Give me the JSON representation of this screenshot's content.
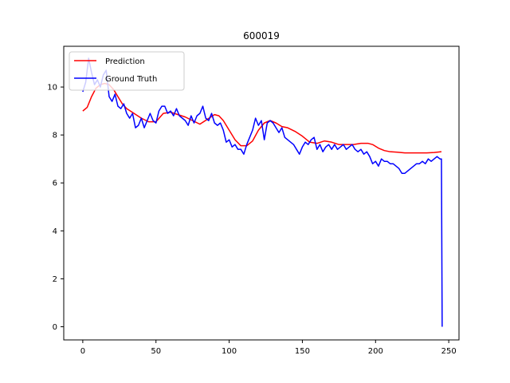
{
  "chart_data": {
    "type": "line",
    "title": "600019",
    "xlabel": "",
    "ylabel": "",
    "xlim": [
      -13,
      257
    ],
    "ylim": [
      -0.55,
      11.7
    ],
    "xticks": [
      0,
      50,
      100,
      150,
      200,
      250
    ],
    "yticks": [
      0,
      2,
      4,
      6,
      8,
      10
    ],
    "grid": false,
    "legend_position": "top-left",
    "series": [
      {
        "name": "Prediction",
        "color": "#ff0000",
        "x": [
          0,
          3,
          6,
          9,
          12,
          15,
          18,
          21,
          24,
          27,
          30,
          35,
          40,
          45,
          50,
          55,
          60,
          65,
          70,
          75,
          80,
          85,
          90,
          93,
          96,
          100,
          104,
          108,
          112,
          116,
          120,
          124,
          128,
          132,
          136,
          140,
          145,
          150,
          155,
          160,
          165,
          170,
          175,
          180,
          185,
          190,
          195,
          198,
          202,
          206,
          210,
          215,
          220,
          225,
          230,
          235,
          240,
          245
        ],
        "values": [
          9.0,
          9.15,
          9.6,
          9.95,
          10.1,
          10.15,
          10.1,
          9.9,
          9.6,
          9.3,
          9.1,
          8.9,
          8.7,
          8.55,
          8.55,
          8.9,
          8.95,
          8.85,
          8.75,
          8.6,
          8.45,
          8.65,
          8.85,
          8.8,
          8.6,
          8.2,
          7.8,
          7.55,
          7.55,
          7.75,
          8.2,
          8.5,
          8.6,
          8.5,
          8.35,
          8.3,
          8.15,
          7.95,
          7.7,
          7.65,
          7.75,
          7.7,
          7.6,
          7.6,
          7.6,
          7.65,
          7.65,
          7.6,
          7.45,
          7.35,
          7.3,
          7.28,
          7.25,
          7.25,
          7.25,
          7.25,
          7.27,
          7.3
        ]
      },
      {
        "name": "Ground Truth",
        "color": "#0000ff",
        "x": [
          0,
          2,
          4,
          6,
          8,
          10,
          12,
          14,
          16,
          18,
          20,
          22,
          24,
          26,
          28,
          30,
          32,
          34,
          36,
          38,
          40,
          42,
          44,
          46,
          48,
          50,
          52,
          54,
          56,
          58,
          60,
          62,
          64,
          66,
          68,
          70,
          72,
          74,
          76,
          78,
          80,
          82,
          84,
          86,
          88,
          90,
          92,
          94,
          96,
          98,
          100,
          102,
          104,
          106,
          108,
          110,
          112,
          114,
          116,
          118,
          120,
          122,
          124,
          126,
          128,
          130,
          132,
          134,
          136,
          138,
          140,
          142,
          144,
          146,
          148,
          150,
          152,
          154,
          156,
          158,
          160,
          162,
          164,
          166,
          168,
          170,
          172,
          174,
          176,
          178,
          180,
          182,
          184,
          186,
          188,
          190,
          192,
          194,
          196,
          198,
          200,
          202,
          204,
          206,
          208,
          210,
          212,
          214,
          216,
          218,
          220,
          222,
          224,
          226,
          228,
          230,
          232,
          234,
          236,
          238,
          240,
          242,
          244,
          245,
          245.5
        ],
        "values": [
          9.8,
          10.2,
          11.2,
          10.6,
          10.1,
          10.3,
          10.0,
          10.5,
          10.7,
          9.6,
          9.4,
          9.7,
          9.2,
          9.1,
          9.3,
          8.9,
          8.7,
          8.9,
          8.3,
          8.4,
          8.7,
          8.3,
          8.6,
          8.9,
          8.6,
          8.5,
          9.0,
          9.2,
          9.2,
          8.9,
          9.0,
          8.8,
          9.1,
          8.8,
          8.7,
          8.6,
          8.4,
          8.8,
          8.5,
          8.8,
          8.9,
          9.2,
          8.7,
          8.6,
          8.9,
          8.5,
          8.4,
          8.5,
          8.2,
          7.7,
          7.8,
          7.5,
          7.6,
          7.4,
          7.4,
          7.2,
          7.6,
          7.9,
          8.2,
          8.7,
          8.4,
          8.6,
          7.8,
          8.5,
          8.6,
          8.5,
          8.3,
          8.1,
          8.3,
          7.9,
          7.8,
          7.7,
          7.6,
          7.4,
          7.2,
          7.5,
          7.7,
          7.6,
          7.8,
          7.9,
          7.4,
          7.6,
          7.3,
          7.5,
          7.6,
          7.4,
          7.6,
          7.4,
          7.5,
          7.6,
          7.4,
          7.5,
          7.6,
          7.4,
          7.3,
          7.4,
          7.2,
          7.3,
          7.1,
          6.8,
          6.9,
          6.7,
          7.0,
          6.9,
          6.9,
          6.8,
          6.8,
          6.7,
          6.6,
          6.4,
          6.4,
          6.5,
          6.6,
          6.7,
          6.8,
          6.8,
          6.9,
          6.8,
          7.0,
          6.9,
          7.0,
          7.1,
          7.0,
          7.0,
          0.0
        ]
      }
    ]
  }
}
